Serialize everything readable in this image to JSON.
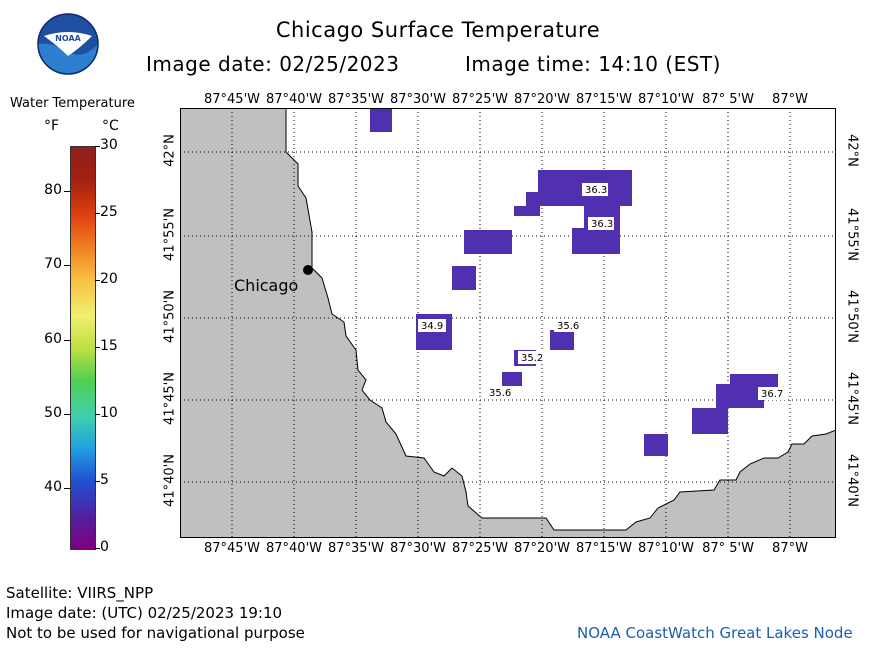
{
  "header": {
    "title": "Chicago Surface Temperature",
    "image_date": "Image date: 02/25/2023",
    "image_time": "Image time: 14:10 (EST)"
  },
  "logo": {
    "text": "NOAA",
    "icon": "noaa-logo-icon"
  },
  "legend": {
    "title": "Water Temperature",
    "unit_f": "°F",
    "unit_c": "°C",
    "f_ticks": [
      "80",
      "70",
      "60",
      "50",
      "40"
    ],
    "c_ticks": [
      "30",
      "25",
      "20",
      "15",
      "10",
      "5",
      "0"
    ],
    "colors": [
      "#800080",
      "#5020a0",
      "#2050d0",
      "#20a0e0",
      "#40d0b0",
      "#50d050",
      "#c0e040",
      "#f0f070",
      "#f8c040",
      "#f08020",
      "#e04010",
      "#a02010",
      "#902020"
    ]
  },
  "map": {
    "top_lon_labels": [
      "87°45'W",
      "87°40'W",
      "87°35'W",
      "87°30'W",
      "87°25'W",
      "87°20'W",
      "87°15'W",
      "87°10'W",
      "87° 5'W",
      "87°W"
    ],
    "bottom_lon_labels": [
      "87°45'W",
      "87°40'W",
      "87°35'W",
      "87°30'W",
      "87°25'W",
      "87°20'W",
      "87°15'W",
      "87°10'W",
      "87° 5'W",
      "87°W"
    ],
    "lat_labels": [
      "42°N",
      "41°55'N",
      "41°50'N",
      "41°45'N",
      "41°40'N"
    ],
    "city": "Chicago",
    "land_color": "#c0c0c0",
    "water_color": "#ffffff",
    "pixel_color": "#5030b0",
    "temperature_labels": [
      "36.3",
      "36.3",
      "34.9",
      "35.6",
      "35.2",
      "35.6",
      "36.7"
    ]
  },
  "footer": {
    "satellite": "Satellite: VIIRS_NPP",
    "utc_date": "Image date: (UTC) 02/25/2023  19:10",
    "disclaimer": "Not to be used for navigational purpose",
    "credit": "NOAA CoastWatch Great Lakes Node"
  }
}
